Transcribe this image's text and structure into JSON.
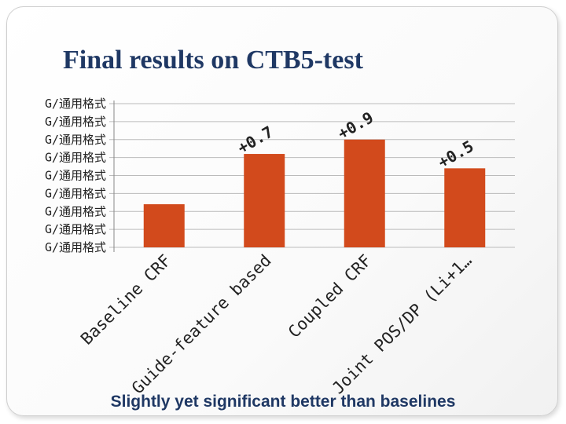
{
  "slide": {
    "title": "Final results on CTB5-test",
    "caption": "Slightly yet significant better than baselines"
  },
  "colors": {
    "bar": "#d24a1c",
    "title": "#1f3864",
    "axis": "#888888",
    "grid": "#bbbbbb"
  },
  "chart_data": {
    "type": "bar",
    "categories": [
      "Baseline CRF",
      "Guide-feature based",
      "Coupled CRF",
      "Joint POS/DP (Li+1…"
    ],
    "values": [
      94.1,
      94.8,
      95.0,
      94.6
    ],
    "ylim": [
      93.5,
      95.5
    ],
    "ytick_labels": [
      "G/通用格式",
      "G/通用格式",
      "G/通用格式",
      "G/通用格式",
      "G/通用格式",
      "G/通用格式",
      "G/通用格式",
      "G/通用格式",
      "G/通用格式"
    ],
    "annotations": [
      "",
      "+0.7",
      "+0.9",
      "+0.5"
    ],
    "grid": true,
    "title": "",
    "xlabel": "",
    "ylabel": ""
  }
}
